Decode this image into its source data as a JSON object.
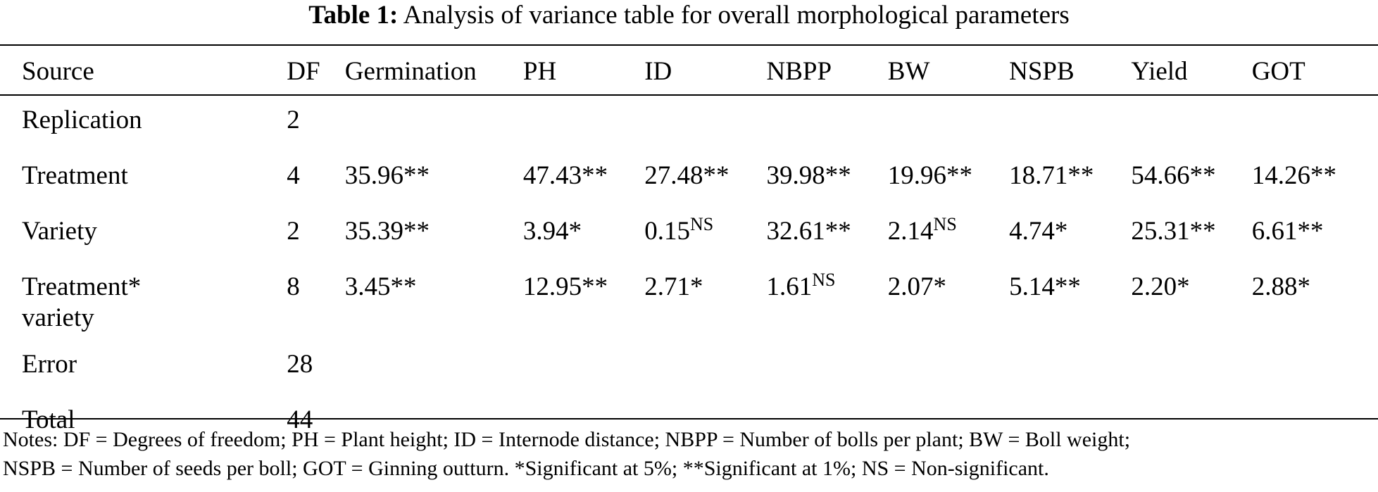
{
  "caption": {
    "label": "Table 1:",
    "text": "Analysis of variance table for overall morphological parameters"
  },
  "table": {
    "headers": [
      "Source",
      "DF",
      "Germination",
      "PH",
      "ID",
      "NBPP",
      "BW",
      "NSPB",
      "Yield",
      "GOT"
    ],
    "rows": [
      {
        "source": "Replication",
        "df": "2",
        "cells": [
          {
            "v": "",
            "sup": ""
          },
          {
            "v": "",
            "sup": ""
          },
          {
            "v": "",
            "sup": ""
          },
          {
            "v": "",
            "sup": ""
          },
          {
            "v": "",
            "sup": ""
          },
          {
            "v": "",
            "sup": ""
          },
          {
            "v": "",
            "sup": ""
          },
          {
            "v": "",
            "sup": ""
          }
        ]
      },
      {
        "source": "Treatment",
        "df": "4",
        "cells": [
          {
            "v": "35.96**",
            "sup": ""
          },
          {
            "v": "47.43**",
            "sup": ""
          },
          {
            "v": "27.48**",
            "sup": ""
          },
          {
            "v": "39.98**",
            "sup": ""
          },
          {
            "v": "19.96**",
            "sup": ""
          },
          {
            "v": "18.71**",
            "sup": ""
          },
          {
            "v": "54.66**",
            "sup": ""
          },
          {
            "v": "14.26**",
            "sup": ""
          }
        ]
      },
      {
        "source": "Variety",
        "df": "2",
        "cells": [
          {
            "v": "35.39**",
            "sup": ""
          },
          {
            "v": "3.94*",
            "sup": ""
          },
          {
            "v": "0.15",
            "sup": "NS"
          },
          {
            "v": "32.61**",
            "sup": ""
          },
          {
            "v": "2.14",
            "sup": "NS"
          },
          {
            "v": "4.74*",
            "sup": ""
          },
          {
            "v": "25.31**",
            "sup": ""
          },
          {
            "v": "6.61**",
            "sup": ""
          }
        ]
      },
      {
        "source_line1": "Treatment*",
        "source_line2": "variety",
        "df": "8",
        "cells": [
          {
            "v": "3.45**",
            "sup": ""
          },
          {
            "v": "12.95**",
            "sup": ""
          },
          {
            "v": "2.71*",
            "sup": ""
          },
          {
            "v": "1.61",
            "sup": "NS"
          },
          {
            "v": "2.07*",
            "sup": ""
          },
          {
            "v": "5.14**",
            "sup": ""
          },
          {
            "v": "2.20*",
            "sup": ""
          },
          {
            "v": "2.88*",
            "sup": ""
          }
        ]
      },
      {
        "source": "Error",
        "df": "28",
        "cells": [
          {
            "v": "",
            "sup": ""
          },
          {
            "v": "",
            "sup": ""
          },
          {
            "v": "",
            "sup": ""
          },
          {
            "v": "",
            "sup": ""
          },
          {
            "v": "",
            "sup": ""
          },
          {
            "v": "",
            "sup": ""
          },
          {
            "v": "",
            "sup": ""
          },
          {
            "v": "",
            "sup": ""
          }
        ]
      },
      {
        "source": "Total",
        "df": "44",
        "cells": [
          {
            "v": "",
            "sup": ""
          },
          {
            "v": "",
            "sup": ""
          },
          {
            "v": "",
            "sup": ""
          },
          {
            "v": "",
            "sup": ""
          },
          {
            "v": "",
            "sup": ""
          },
          {
            "v": "",
            "sup": ""
          },
          {
            "v": "",
            "sup": ""
          },
          {
            "v": "",
            "sup": ""
          }
        ]
      }
    ]
  },
  "notes": {
    "line1": "Notes: DF = Degrees of freedom; PH = Plant height; ID = Internode distance; NBPP = Number of bolls per plant; BW = Boll weight;",
    "line2": "NSPB = Number of seeds per boll; GOT = Ginning outturn. *Significant at 5%; **Significant at 1%; NS = Non-significant."
  }
}
